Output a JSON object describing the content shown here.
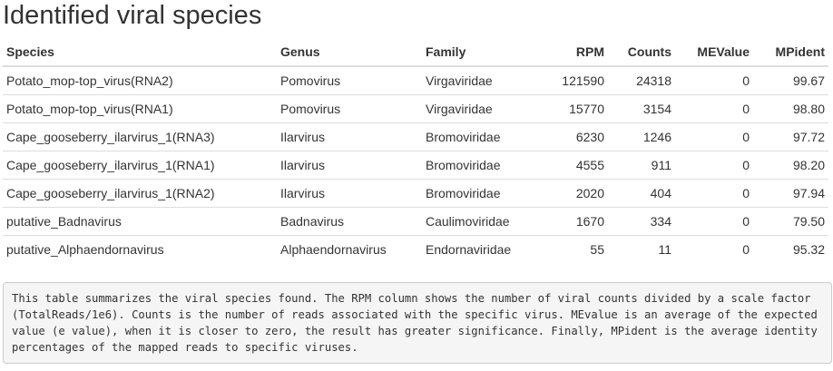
{
  "title": "Identified viral species",
  "table": {
    "columns": [
      "Species",
      "Genus",
      "Family",
      "RPM",
      "Counts",
      "MEValue",
      "MPident"
    ],
    "rows": [
      [
        "Potato_mop-top_virus(RNA2)",
        "Pomovirus",
        "Virgaviridae",
        "121590",
        "24318",
        "0",
        "99.67"
      ],
      [
        "Potato_mop-top_virus(RNA1)",
        "Pomovirus",
        "Virgaviridae",
        "15770",
        "3154",
        "0",
        "98.80"
      ],
      [
        "Cape_gooseberry_ilarvirus_1(RNA3)",
        "Ilarvirus",
        "Bromoviridae",
        "6230",
        "1246",
        "0",
        "97.72"
      ],
      [
        "Cape_gooseberry_ilarvirus_1(RNA1)",
        "Ilarvirus",
        "Bromoviridae",
        "4555",
        "911",
        "0",
        "98.20"
      ],
      [
        "Cape_gooseberry_ilarvirus_1(RNA2)",
        "Ilarvirus",
        "Bromoviridae",
        "2020",
        "404",
        "0",
        "97.94"
      ],
      [
        "putative_Badnavirus",
        "Badnavirus",
        "Caulimoviridae",
        "1670",
        "334",
        "0",
        "79.50"
      ],
      [
        "putative_Alphaendornavirus",
        "Alphaendornavirus",
        "Endornaviridae",
        "55",
        "11",
        "0",
        "95.32"
      ]
    ]
  },
  "note": "This table summarizes the viral species found. The RPM column shows the number of viral counts divided by a scale factor (TotalReads/1e6). Counts is the number of reads associated with the specific virus. MEvalue is an average of the expected value (e value), when it is closer to zero, the result has greater significance. Finally, MPident is the average identity percentages of the mapped reads to specific viruses."
}
